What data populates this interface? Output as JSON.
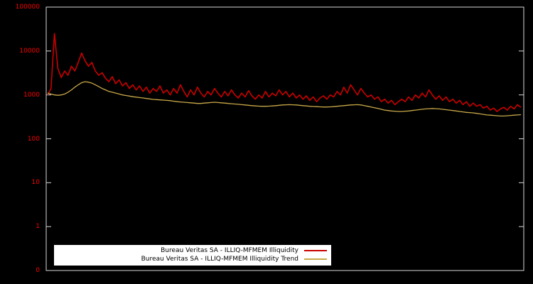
{
  "figure": {
    "background_color": "#000000",
    "plot_border_color": "#d8d8d8",
    "tick_label_color": "#ff0000"
  },
  "y_axis": {
    "scale": "log",
    "labels": [
      "100000",
      "10000",
      "1000",
      "100",
      "10",
      "1",
      "0"
    ]
  },
  "legend": {
    "entries": [
      {
        "label": "Bureau Veritas SA - ILLIQ-MFMEM Illiquidity",
        "color": "#cc0000"
      },
      {
        "label": "Bureau Veritas SA - ILLIQ-MFMEM Illiquidity Trend",
        "color": "#c8a848"
      }
    ]
  },
  "chart_data": {
    "type": "line",
    "title": "",
    "xlabel": "",
    "ylabel": "",
    "yscale": "log",
    "ylim": [
      0.1,
      100000
    ],
    "grid": false,
    "legend_position": "bottom-left-inside",
    "background": "#000000",
    "series": [
      {
        "name": "Bureau Veritas SA - ILLIQ-MFMEM Illiquidity",
        "color": "#cc0000",
        "width": 1.6,
        "values": [
          1000,
          1400,
          25000,
          4000,
          2500,
          3500,
          2800,
          4500,
          3500,
          5500,
          9000,
          6000,
          4500,
          5500,
          3500,
          2800,
          3200,
          2400,
          2000,
          2600,
          1800,
          2200,
          1600,
          1900,
          1400,
          1700,
          1300,
          1600,
          1200,
          1500,
          1100,
          1400,
          1200,
          1600,
          1100,
          1300,
          1000,
          1400,
          1100,
          1700,
          1200,
          900,
          1300,
          1000,
          1500,
          1100,
          900,
          1200,
          1000,
          1400,
          1100,
          900,
          1200,
          950,
          1300,
          1000,
          850,
          1100,
          900,
          1250,
          950,
          800,
          1000,
          850,
          1200,
          900,
          1100,
          950,
          1300,
          1000,
          1200,
          900,
          1100,
          850,
          1000,
          800,
          950,
          750,
          900,
          700,
          850,
          950,
          800,
          1000,
          900,
          1200,
          1000,
          1500,
          1100,
          1700,
          1300,
          1000,
          1400,
          1100,
          900,
          1000,
          800,
          900,
          700,
          800,
          650,
          750,
          600,
          700,
          800,
          700,
          900,
          750,
          1000,
          850,
          1100,
          900,
          1300,
          1000,
          800,
          950,
          750,
          900,
          700,
          800,
          650,
          750,
          600,
          700,
          550,
          650,
          550,
          600,
          500,
          550,
          450,
          500,
          420,
          480,
          520,
          450,
          550,
          480,
          600,
          520
        ]
      },
      {
        "name": "Bureau Veritas SA - ILLIQ-MFMEM Illiquidity Trend",
        "color": "#c8a848",
        "width": 1.3,
        "values": [
          1100,
          1050,
          1000,
          980,
          1000,
          1050,
          1150,
          1300,
          1500,
          1700,
          1900,
          2000,
          1950,
          1850,
          1700,
          1550,
          1400,
          1300,
          1200,
          1150,
          1100,
          1050,
          1000,
          970,
          940,
          910,
          890,
          870,
          850,
          830,
          810,
          790,
          780,
          770,
          760,
          750,
          740,
          720,
          700,
          690,
          680,
          670,
          660,
          650,
          640,
          640,
          650,
          660,
          670,
          680,
          670,
          660,
          650,
          640,
          630,
          620,
          610,
          600,
          590,
          580,
          570,
          560,
          555,
          550,
          550,
          555,
          560,
          570,
          580,
          590,
          595,
          600,
          595,
          590,
          580,
          570,
          560,
          550,
          545,
          540,
          535,
          530,
          530,
          535,
          540,
          550,
          560,
          570,
          580,
          590,
          595,
          600,
          590,
          570,
          550,
          530,
          510,
          490,
          470,
          450,
          440,
          430,
          425,
          420,
          420,
          425,
          430,
          440,
          450,
          460,
          470,
          480,
          485,
          490,
          485,
          480,
          470,
          460,
          450,
          440,
          430,
          420,
          410,
          400,
          395,
          390,
          380,
          370,
          360,
          350,
          345,
          340,
          335,
          330,
          330,
          335,
          340,
          345,
          350,
          355
        ]
      }
    ]
  }
}
